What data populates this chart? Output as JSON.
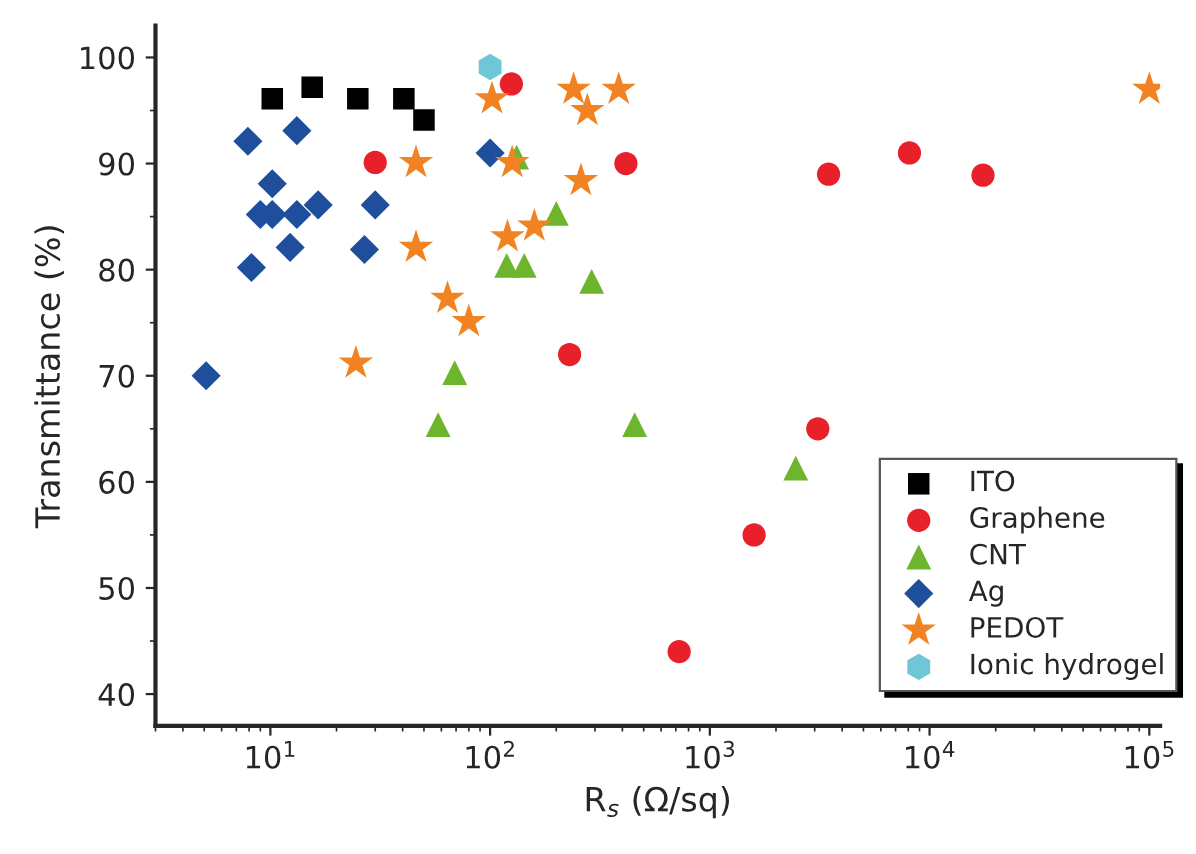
{
  "chart_data": {
    "type": "scatter",
    "xlabel": "R$_{s}$ (Ω/sq)",
    "ylabel": "Transmittance (%)",
    "log": "x",
    "xlim": [
      3,
      112000
    ],
    "ylim": [
      37,
      103
    ],
    "xticks": [
      {
        "value": 10,
        "label": "10$^{1}$"
      },
      {
        "value": 100,
        "label": "10$^{2}$"
      },
      {
        "value": 1000,
        "label": "10$^{3}$"
      },
      {
        "value": 10000,
        "label": "10$^{4}$"
      },
      {
        "value": 100000,
        "label": "10$^{5}$"
      }
    ],
    "yticks": [
      40,
      50,
      60,
      70,
      80,
      90,
      100
    ],
    "grid": false,
    "legend": "bottom right",
    "series": [
      {
        "name": "ITO",
        "color": "#000000",
        "marker": "square",
        "x": [
          10.2,
          15.5,
          25,
          40.5,
          50
        ],
        "values": [
          96.1,
          97.2,
          96.1,
          96.1,
          94.1
        ]
      },
      {
        "name": "Graphene",
        "color": "#e8202a",
        "marker": "circle",
        "x": [
          30,
          125,
          230,
          415,
          725,
          1590,
          3100,
          3470,
          8100,
          17500
        ],
        "values": [
          90.1,
          97.5,
          72.0,
          90.0,
          44.0,
          55.0,
          65.0,
          89.0,
          91.0,
          88.9
        ]
      },
      {
        "name": "CNT",
        "color": "#6cb52d",
        "marker": "triangle",
        "x": [
          58,
          69,
          119,
          132,
          143,
          200,
          290,
          455,
          2460
        ],
        "values": [
          65.4,
          70.3,
          80.4,
          90.6,
          80.4,
          85.3,
          78.9,
          65.4,
          61.3
        ]
      },
      {
        "name": "Ag",
        "color": "#1f4e9c",
        "marker": "diamond",
        "x": [
          5.1,
          7.9,
          8.2,
          9.0,
          10.2,
          10.2,
          12.3,
          13.2,
          13.2,
          16.5,
          26.8,
          30,
          100
        ],
        "values": [
          70.0,
          92.1,
          80.2,
          85.2,
          88.1,
          85.2,
          82.1,
          93.1,
          85.2,
          86.1,
          81.9,
          86.1,
          91.0
        ]
      },
      {
        "name": "PEDOT",
        "color": "#f28322",
        "marker": "star",
        "x": [
          24.5,
          46,
          46,
          64,
          80,
          102,
          120,
          126,
          159,
          240,
          259,
          277,
          385,
          100000
        ],
        "values": [
          71.2,
          90.1,
          82.1,
          77.3,
          75.1,
          96.1,
          83.1,
          90.1,
          84.1,
          97.0,
          88.4,
          95.0,
          97.0,
          97.0
        ]
      },
      {
        "name": "Ionic hydrogel",
        "color": "#6ec6d6",
        "x": [
          100
        ],
        "values": [
          99.1
        ]
      }
    ]
  }
}
